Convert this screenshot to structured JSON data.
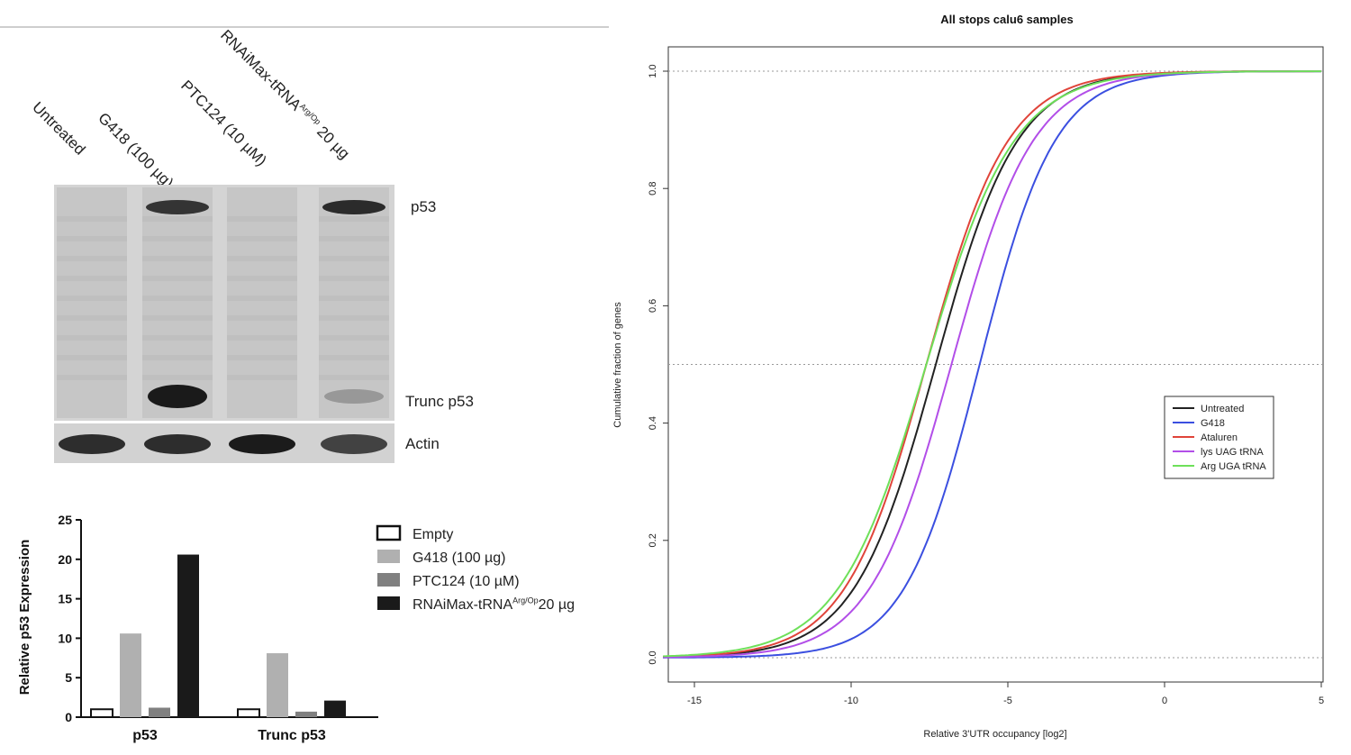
{
  "western_blot": {
    "lanes": [
      {
        "name": "Untreated",
        "sup": ""
      },
      {
        "name": "G418 (100 µg)",
        "sup": ""
      },
      {
        "name": "PTC124 (10 µM)",
        "sup": ""
      },
      {
        "name": "RNAiMax-tRNA",
        "sup": "Arg/Op",
        "suffix": " 20 µg"
      }
    ],
    "bands": {
      "p53": "p53",
      "trunc": "Trunc p53",
      "actin": "Actin"
    },
    "p53_band_intensity": [
      0.05,
      0.85,
      0.04,
      0.9
    ],
    "trunc_band_intensity": [
      0.05,
      0.95,
      0.03,
      0.25
    ],
    "actin_band_intensity": [
      0.85,
      0.85,
      0.95,
      0.75
    ]
  },
  "chart_data": [
    {
      "type": "bar",
      "ylabel": "Relative p53 Expression",
      "ylim": [
        0,
        25
      ],
      "yticks": [
        0,
        5,
        10,
        15,
        20,
        25
      ],
      "categories": [
        "p53",
        "Trunc p53"
      ],
      "series": [
        {
          "name": "Empty",
          "values": [
            1,
            1
          ],
          "color": "#ffffff"
        },
        {
          "name": "G418 (100 µg)",
          "values": [
            10.6,
            8.1
          ],
          "color": "#b0b0b0"
        },
        {
          "name": "PTC124 (10 µM)",
          "values": [
            1.2,
            0.7
          ],
          "color": "#808080"
        },
        {
          "name": "RNAiMax-tRNA",
          "sup": "Arg/Op",
          "suffix": "20 µg",
          "values": [
            20.6,
            2.1
          ],
          "color": "#1a1a1a"
        }
      ]
    },
    {
      "type": "line",
      "title": "All stops calu6 samples",
      "xlabel": "Relative 3'UTR occupancy [log2]",
      "ylabel": "Cumulative fraction of genes",
      "xlim": [
        -16,
        5
      ],
      "ylim": [
        0,
        1
      ],
      "xticks": [
        -15,
        -10,
        -5,
        0,
        5
      ],
      "yticks": [
        0.0,
        0.2,
        0.4,
        0.6,
        0.8,
        1.0
      ],
      "tick_labels_x": [
        "-15",
        "-10",
        "-5",
        "0",
        "5"
      ],
      "tick_labels_y": [
        "0.0",
        "0.2",
        "0.4",
        "0.6",
        "0.8",
        "1.0"
      ],
      "reference_lines_y": [
        0,
        0.5,
        1.0
      ],
      "legend_position": "right",
      "series": [
        {
          "name": "Untreated",
          "color": "#222222",
          "median": -7.3,
          "scale": 1.3
        },
        {
          "name": "G418",
          "color": "#3b4fe0",
          "median": -5.9,
          "scale": 1.2
        },
        {
          "name": "Ataluren",
          "color": "#e0443a",
          "median": -7.6,
          "scale": 1.3
        },
        {
          "name": "lys UAG tRNA",
          "color": "#b24ee8",
          "median": -6.8,
          "scale": 1.3
        },
        {
          "name": "Arg UGA tRNA",
          "color": "#6ee05a",
          "median": -7.6,
          "scale": 1.4
        }
      ]
    }
  ]
}
